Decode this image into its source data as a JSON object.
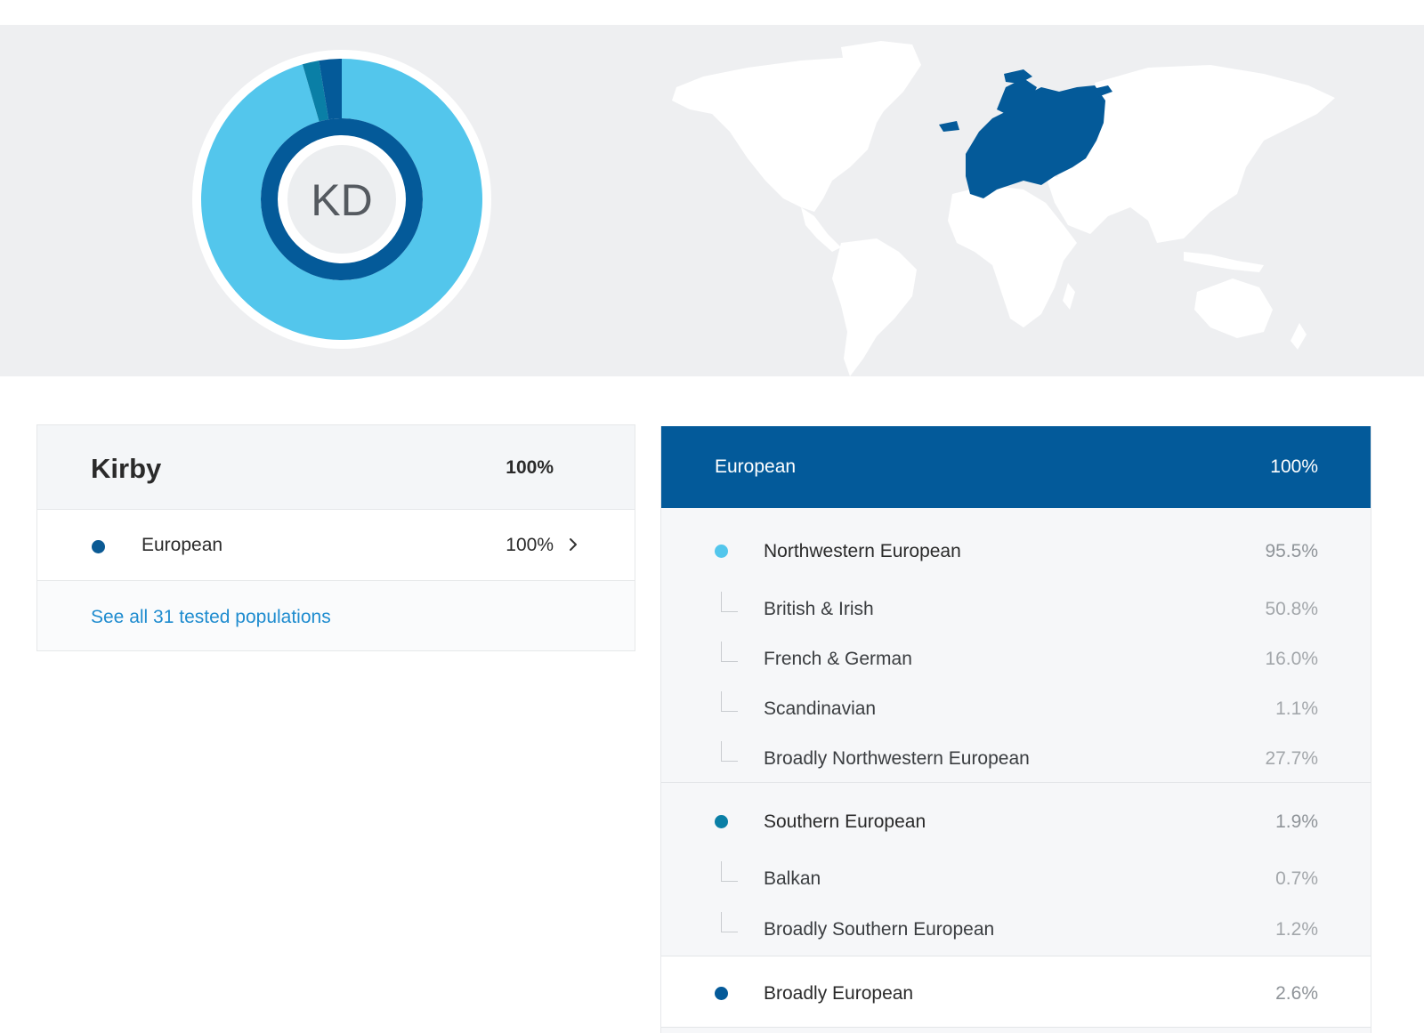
{
  "hero": {
    "initials": "KD",
    "colors": {
      "northwestern": "#53c6ec",
      "southern": "#0a7fa6",
      "broadly": "#045a99",
      "map_region": "#045a99",
      "map_land": "#ffffff",
      "background": "#eeeff1"
    }
  },
  "summary": {
    "name": "Kirby",
    "total_pct": "100%",
    "row": {
      "label": "European",
      "pct": "100%",
      "color": "#0b5a94"
    },
    "link": "See all 31 tested populations",
    "icons": {
      "chevron": "chevron-right-icon"
    }
  },
  "breakdown": {
    "header": {
      "label": "European",
      "pct": "100%"
    },
    "groups": [
      {
        "label": "Northwestern European",
        "pct": "95.5%",
        "color": "#53c6ec",
        "children": [
          {
            "label": "British & Irish",
            "pct": "50.8%"
          },
          {
            "label": "French & German",
            "pct": "16.0%"
          },
          {
            "label": "Scandinavian",
            "pct": "1.1%"
          },
          {
            "label": "Broadly Northwestern European",
            "pct": "27.7%"
          }
        ]
      },
      {
        "label": "Southern European",
        "pct": "1.9%",
        "color": "#0a7fa6",
        "children": [
          {
            "label": "Balkan",
            "pct": "0.7%"
          },
          {
            "label": "Broadly Southern European",
            "pct": "1.2%"
          }
        ]
      },
      {
        "label": "Broadly European",
        "pct": "2.6%",
        "color": "#045a99",
        "children": []
      }
    ]
  }
}
